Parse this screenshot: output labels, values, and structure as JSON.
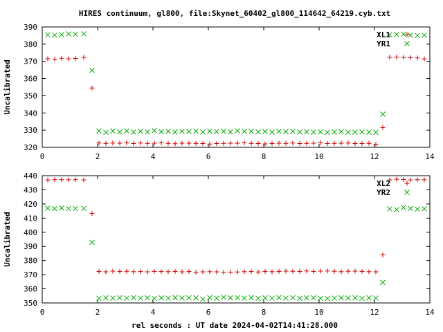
{
  "title": "HIRES continuum, gl800, file:Skynet_60402_gl800_114642_64219.cyb.txt",
  "xlabel": "rel seconds : UT date 2024-04-02T14:41:28.000",
  "colors": {
    "plus_series": "#cc0000",
    "x_series": "#00aa00",
    "axis": "#000000"
  },
  "chart_data": [
    {
      "type": "scatter",
      "ylabel": "Uncalibrated",
      "xlim": [
        0,
        14
      ],
      "ylim": [
        320,
        390
      ],
      "xticks": [
        0,
        2,
        4,
        6,
        8,
        10,
        12,
        14
      ],
      "yticks": [
        320,
        330,
        340,
        350,
        360,
        370,
        380,
        390
      ],
      "legend_position": "top-right",
      "grid": false,
      "series": [
        {
          "name": "XL1",
          "marker": "plus",
          "x": [
            0.2,
            0.45,
            0.7,
            0.95,
            1.2,
            1.5,
            1.8,
            2.05,
            2.3,
            2.55,
            2.8,
            3.05,
            3.3,
            3.55,
            3.8,
            4.05,
            4.3,
            4.55,
            4.8,
            5.05,
            5.3,
            5.55,
            5.8,
            6.05,
            6.3,
            6.55,
            6.8,
            7.05,
            7.3,
            7.55,
            7.8,
            8.05,
            8.3,
            8.55,
            8.8,
            9.05,
            9.3,
            9.55,
            9.8,
            10.05,
            10.3,
            10.55,
            10.8,
            11.05,
            11.3,
            11.55,
            11.8,
            12.05,
            12.3,
            12.55,
            12.8,
            13.05,
            13.3,
            13.55,
            13.8
          ],
          "y": [
            371.5,
            371.2,
            371.8,
            371.5,
            371.7,
            372.3,
            354.5,
            322.5,
            322.3,
            322.5,
            322.4,
            322.6,
            322.2,
            322.5,
            322.3,
            322.4,
            322.6,
            322.3,
            322.1,
            322.4,
            322.4,
            322.3,
            322.2,
            321.9,
            322.2,
            322.3,
            322.4,
            322.4,
            322.6,
            322.3,
            322.2,
            322.0,
            322.2,
            322.4,
            322.3,
            322.5,
            322.2,
            322.3,
            322.4,
            322.6,
            322.2,
            322.3,
            322.4,
            322.5,
            322.2,
            322.2,
            322.3,
            321.8,
            331.5,
            372.4,
            372.5,
            372.3,
            372.1,
            372.0,
            371.4
          ]
        },
        {
          "name": "YR1",
          "marker": "cross",
          "x": [
            0.2,
            0.45,
            0.7,
            0.95,
            1.2,
            1.5,
            1.8,
            2.05,
            2.3,
            2.55,
            2.8,
            3.05,
            3.3,
            3.55,
            3.8,
            4.05,
            4.3,
            4.55,
            4.8,
            5.05,
            5.3,
            5.55,
            5.8,
            6.05,
            6.3,
            6.55,
            6.8,
            7.05,
            7.3,
            7.55,
            7.8,
            8.05,
            8.3,
            8.55,
            8.8,
            9.05,
            9.3,
            9.55,
            9.8,
            10.05,
            10.3,
            10.55,
            10.8,
            11.05,
            11.3,
            11.55,
            11.8,
            12.05,
            12.3,
            12.55,
            12.8,
            13.05,
            13.3,
            13.55,
            13.8
          ],
          "y": [
            385.5,
            385.3,
            385.5,
            386.0,
            385.8,
            386.0,
            364.8,
            329.5,
            328.7,
            329.5,
            328.9,
            329.5,
            328.9,
            329.3,
            329.0,
            329.7,
            329.1,
            329.3,
            328.9,
            329.3,
            329.2,
            329.4,
            328.9,
            329.4,
            329.1,
            329.3,
            329.0,
            329.6,
            329.3,
            329.3,
            329.0,
            329.2,
            328.8,
            329.3,
            329.1,
            329.3,
            328.9,
            329.0,
            328.8,
            329.0,
            328.6,
            328.9,
            329.2,
            328.8,
            328.8,
            329.0,
            328.8,
            328.7,
            339.3,
            385.5,
            385.6,
            385.8,
            385.3,
            385.0,
            385.2
          ]
        }
      ]
    },
    {
      "type": "scatter",
      "ylabel": "Uncalibrated",
      "xlim": [
        0,
        14
      ],
      "ylim": [
        350,
        440
      ],
      "xticks": [
        0,
        2,
        4,
        6,
        8,
        10,
        12,
        14
      ],
      "yticks": [
        350,
        360,
        370,
        380,
        390,
        400,
        410,
        420,
        430,
        440
      ],
      "legend_position": "top-right",
      "grid": false,
      "series": [
        {
          "name": "XL2",
          "marker": "plus",
          "x": [
            0.2,
            0.45,
            0.7,
            0.95,
            1.2,
            1.5,
            1.8,
            2.05,
            2.3,
            2.55,
            2.8,
            3.05,
            3.3,
            3.55,
            3.8,
            4.05,
            4.3,
            4.55,
            4.8,
            5.05,
            5.3,
            5.55,
            5.8,
            6.05,
            6.3,
            6.55,
            6.8,
            7.05,
            7.3,
            7.55,
            7.8,
            8.05,
            8.3,
            8.55,
            8.8,
            9.05,
            9.3,
            9.55,
            9.8,
            10.05,
            10.3,
            10.55,
            10.8,
            11.05,
            11.3,
            11.55,
            11.8,
            12.05,
            12.3,
            12.55,
            12.8,
            13.05,
            13.3,
            13.55,
            13.8
          ],
          "y": [
            437.0,
            437.2,
            437.2,
            437.1,
            437.2,
            437.0,
            413.3,
            372.3,
            372.0,
            372.5,
            372.3,
            372.4,
            372.1,
            372.2,
            372.0,
            372.3,
            372.2,
            372.1,
            372.3,
            372.0,
            372.2,
            371.7,
            372.0,
            372.1,
            372.0,
            371.6,
            371.8,
            371.9,
            372.1,
            372.2,
            371.9,
            372.3,
            372.1,
            372.3,
            372.5,
            372.4,
            372.3,
            372.6,
            372.3,
            372.5,
            372.6,
            372.4,
            372.1,
            372.4,
            372.5,
            372.3,
            372.1,
            372.0,
            384.0,
            437.0,
            437.5,
            437.3,
            437.0,
            437.2,
            437.1
          ]
        },
        {
          "name": "YR2",
          "marker": "cross",
          "x": [
            0.2,
            0.45,
            0.7,
            0.95,
            1.2,
            1.5,
            1.8,
            2.05,
            2.3,
            2.55,
            2.8,
            3.05,
            3.3,
            3.55,
            3.8,
            4.05,
            4.3,
            4.55,
            4.8,
            5.05,
            5.3,
            5.55,
            5.8,
            6.05,
            6.3,
            6.55,
            6.8,
            7.05,
            7.3,
            7.55,
            7.8,
            8.05,
            8.3,
            8.55,
            8.8,
            9.05,
            9.3,
            9.55,
            9.8,
            10.05,
            10.3,
            10.55,
            10.8,
            11.05,
            11.3,
            11.55,
            11.8,
            12.05,
            12.3,
            12.55,
            12.8,
            13.05,
            13.3,
            13.55,
            13.8
          ],
          "y": [
            417.0,
            416.7,
            417.2,
            416.8,
            416.8,
            416.8,
            392.8,
            353.2,
            353.6,
            353.4,
            353.7,
            353.4,
            353.8,
            353.4,
            353.7,
            353.2,
            353.6,
            353.4,
            353.8,
            353.5,
            353.6,
            353.6,
            352.6,
            353.8,
            353.3,
            354.0,
            353.6,
            353.7,
            353.4,
            353.8,
            353.2,
            353.6,
            353.4,
            353.8,
            353.4,
            353.7,
            353.3,
            353.6,
            353.7,
            353.3,
            353.1,
            353.4,
            353.6,
            353.5,
            353.6,
            353.2,
            353.6,
            353.4,
            364.5,
            416.5,
            416.0,
            417.5,
            416.9,
            416.3,
            416.6
          ]
        }
      ]
    }
  ]
}
